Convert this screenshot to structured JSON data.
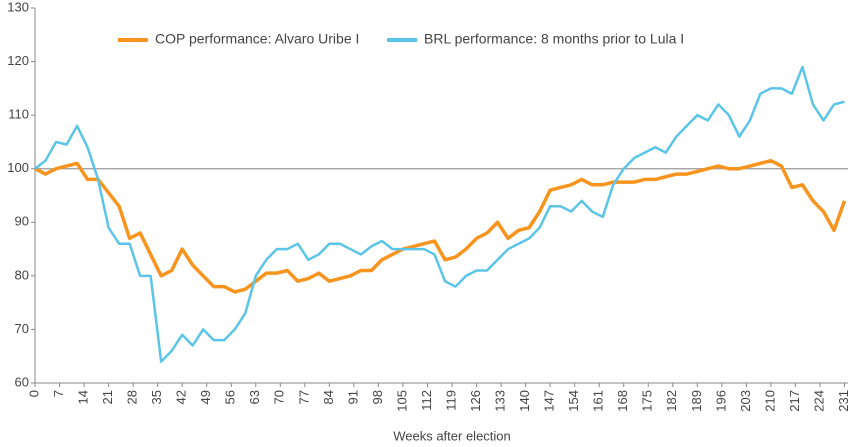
{
  "chart_data": {
    "type": "line",
    "x_label": "Weeks after election",
    "x": [
      0,
      3,
      6,
      9,
      12,
      15,
      18,
      21,
      24,
      27,
      30,
      33,
      36,
      39,
      42,
      45,
      48,
      51,
      54,
      57,
      60,
      63,
      66,
      69,
      72,
      75,
      78,
      81,
      84,
      87,
      90,
      93,
      96,
      99,
      102,
      105,
      108,
      111,
      114,
      117,
      120,
      123,
      126,
      129,
      132,
      135,
      138,
      141,
      144,
      147,
      150,
      153,
      156,
      159,
      162,
      165,
      168,
      171,
      174,
      177,
      180,
      183,
      186,
      189,
      192,
      195,
      198,
      201,
      204,
      207,
      210,
      213,
      216,
      219,
      222,
      225,
      228,
      231
    ],
    "series": [
      {
        "name": "COP performance: Alvaro Uribe I",
        "color": "#f7941d",
        "values": [
          100,
          99,
          100,
          100.5,
          101,
          98,
          98,
          95.5,
          93,
          87,
          88,
          84,
          80,
          81,
          85,
          82,
          80,
          78,
          78,
          77,
          77.5,
          79,
          80.5,
          80.5,
          81,
          79,
          79.5,
          80.5,
          79,
          79.5,
          80,
          81,
          81,
          83,
          84,
          85,
          85.5,
          86,
          86.5,
          83,
          83.5,
          85,
          87,
          88,
          90,
          87,
          88.5,
          89,
          92,
          96,
          96.5,
          97,
          98,
          97,
          97,
          97.5,
          97.5,
          97.5,
          98,
          98,
          98.5,
          99,
          99,
          99.5,
          100,
          100.5,
          100,
          100,
          100.5,
          101,
          101.5,
          100.5,
          96.5,
          97,
          94,
          92,
          88.5,
          94
        ]
      },
      {
        "name": "BRL performance: 8 months prior to Lula I",
        "color": "#5bc5e8",
        "values": [
          100,
          101.5,
          105,
          104.5,
          108,
          104,
          98,
          89,
          86,
          86,
          80,
          80,
          64,
          66,
          69,
          67,
          70,
          68,
          68,
          70,
          73,
          80,
          83,
          85,
          85,
          86,
          83,
          84,
          86,
          86,
          85,
          84,
          85.5,
          86.5,
          85,
          85,
          85,
          85,
          84,
          79,
          78,
          80,
          81,
          81,
          83,
          85,
          86,
          87,
          89,
          93,
          93,
          92,
          94,
          92,
          91,
          97,
          100,
          102,
          103,
          104,
          103,
          106,
          108,
          110,
          109,
          112,
          110,
          106,
          109,
          114,
          115,
          115,
          114,
          119,
          112,
          109,
          112,
          112.5
        ]
      }
    ],
    "hline": 100,
    "xlim": [
      0,
      232
    ],
    "xticks": [
      0,
      7,
      14,
      21,
      28,
      35,
      42,
      49,
      56,
      63,
      70,
      77,
      84,
      91,
      98,
      105,
      112,
      119,
      126,
      133,
      140,
      147,
      154,
      161,
      168,
      175,
      182,
      189,
      196,
      203,
      210,
      217,
      224,
      231
    ],
    "ylim": [
      60,
      130
    ],
    "yticks": [
      60,
      70,
      80,
      90,
      100,
      110,
      120,
      130
    ]
  }
}
